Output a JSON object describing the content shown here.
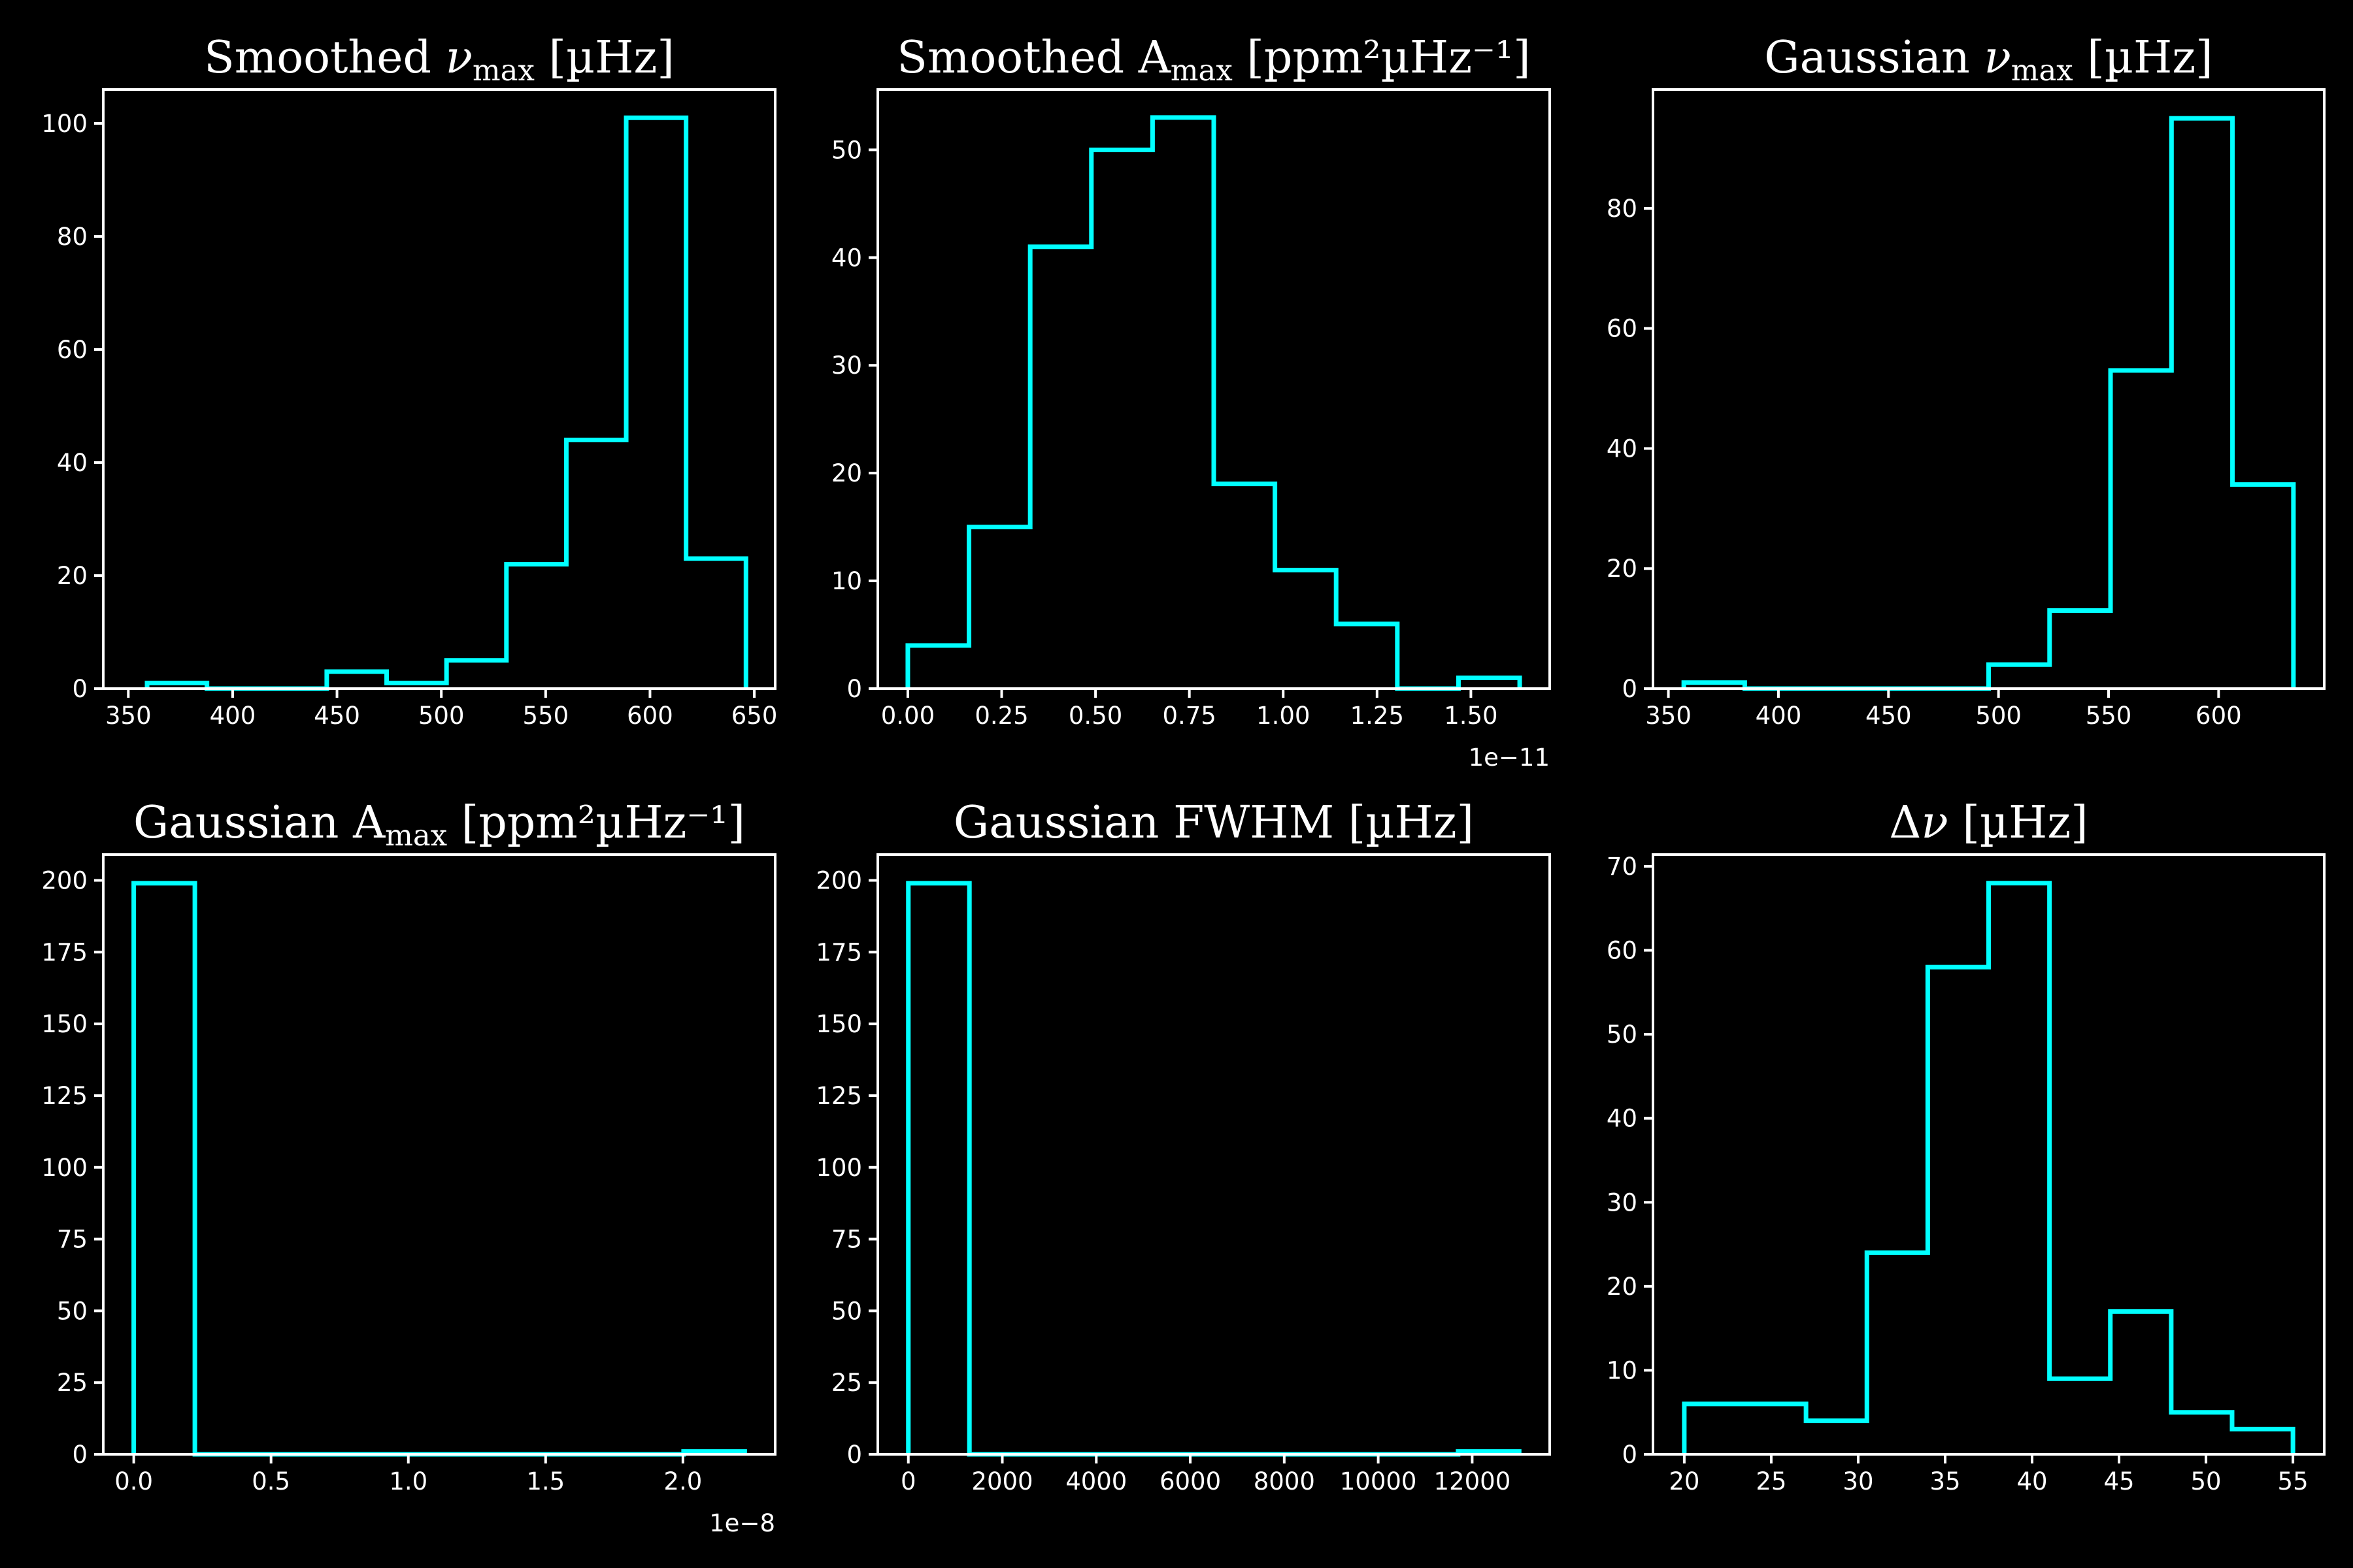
{
  "figure": {
    "background": "#000000",
    "foreground": "#ffffff",
    "line_color": "#00ffff"
  },
  "chart_data": [
    {
      "type": "histogram",
      "title": {
        "main": "Smoothed ",
        "symbol": "ν",
        "sub": "max",
        "sup": "",
        "unit": " [µHz]"
      },
      "bin_edges": [
        359,
        387.7,
        416.4,
        445.1,
        473.8,
        502.5,
        531.2,
        559.9,
        588.6,
        617.3,
        646
      ],
      "counts": [
        1,
        0,
        0,
        3,
        1,
        5,
        22,
        44,
        101,
        23
      ],
      "xlim": [
        338,
        660
      ],
      "ylim": [
        0,
        106
      ],
      "xticks": [
        350,
        400,
        450,
        500,
        550,
        600,
        650
      ],
      "xtick_labels": [
        "350",
        "400",
        "450",
        "500",
        "550",
        "600",
        "650"
      ],
      "yticks": [
        0,
        20,
        40,
        60,
        80,
        100
      ],
      "ytick_labels": [
        "0",
        "20",
        "40",
        "60",
        "80",
        "100"
      ],
      "x_offset_label": ""
    },
    {
      "type": "histogram",
      "title": {
        "main": "Smoothed A",
        "symbol": "",
        "sub": "max",
        "sup": "",
        "unit": " [ppm²µHz⁻¹]"
      },
      "bin_edges": [
        0.0,
        0.163,
        0.326,
        0.489,
        0.652,
        0.815,
        0.978,
        1.141,
        1.304,
        1.467,
        1.63
      ],
      "counts": [
        4,
        15,
        41,
        50,
        53,
        19,
        11,
        6,
        0,
        1
      ],
      "xlim": [
        -0.08,
        1.71
      ],
      "ylim": [
        0,
        55.6
      ],
      "xticks": [
        0.0,
        0.25,
        0.5,
        0.75,
        1.0,
        1.25,
        1.5
      ],
      "xtick_labels": [
        "0.00",
        "0.25",
        "0.50",
        "0.75",
        "1.00",
        "1.25",
        "1.50"
      ],
      "yticks": [
        0,
        10,
        20,
        30,
        40,
        50
      ],
      "ytick_labels": [
        "0",
        "10",
        "20",
        "30",
        "40",
        "50"
      ],
      "x_offset_label": "1e−11"
    },
    {
      "type": "histogram",
      "title": {
        "main": "Gaussian ",
        "symbol": "ν",
        "sub": "max",
        "sup": "",
        "unit": " [µHz]"
      },
      "bin_edges": [
        357,
        384.7,
        412.4,
        440.1,
        467.8,
        495.5,
        523.2,
        550.9,
        578.6,
        606.3,
        634
      ],
      "counts": [
        1,
        0,
        0,
        0,
        0,
        4,
        13,
        53,
        95,
        34
      ],
      "xlim": [
        343,
        648
      ],
      "ylim": [
        0,
        99.8
      ],
      "xticks": [
        350,
        400,
        450,
        500,
        550,
        600
      ],
      "xtick_labels": [
        "350",
        "400",
        "450",
        "500",
        "550",
        "600"
      ],
      "yticks": [
        0,
        20,
        40,
        60,
        80
      ],
      "ytick_labels": [
        "0",
        "20",
        "40",
        "60",
        "80"
      ],
      "x_offset_label": ""
    },
    {
      "type": "histogram",
      "title": {
        "main": "Gaussian A",
        "symbol": "",
        "sub": "max",
        "sup": "",
        "unit": " [ppm²µHz⁻¹]"
      },
      "bin_edges": [
        0.0,
        0.2225,
        0.445,
        0.6675,
        0.89,
        1.1125,
        1.335,
        1.5575,
        1.78,
        2.0025,
        2.225
      ],
      "counts": [
        199,
        0,
        0,
        0,
        0,
        0,
        0,
        0,
        0,
        1
      ],
      "xlim": [
        -0.111,
        2.336
      ],
      "ylim": [
        0,
        209
      ],
      "xticks": [
        0.0,
        0.5,
        1.0,
        1.5,
        2.0
      ],
      "xtick_labels": [
        "0.0",
        "0.5",
        "1.0",
        "1.5",
        "2.0"
      ],
      "yticks": [
        0,
        25,
        50,
        75,
        100,
        125,
        150,
        175,
        200
      ],
      "ytick_labels": [
        "0",
        "25",
        "50",
        "75",
        "100",
        "125",
        "150",
        "175",
        "200"
      ],
      "x_offset_label": "1e−8"
    },
    {
      "type": "histogram",
      "title": {
        "main": "Gaussian FWHM",
        "symbol": "",
        "sub": "",
        "sup": "",
        "unit": " [µHz]"
      },
      "bin_edges": [
        0,
        1300,
        2600,
        3900,
        5200,
        6500,
        7800,
        9100,
        10400,
        11700,
        13000
      ],
      "counts": [
        199,
        0,
        0,
        0,
        0,
        0,
        0,
        0,
        0,
        1
      ],
      "xlim": [
        -650,
        13650
      ],
      "ylim": [
        0,
        209
      ],
      "xticks": [
        0,
        2000,
        4000,
        6000,
        8000,
        10000,
        12000
      ],
      "xtick_labels": [
        "0",
        "2000",
        "4000",
        "6000",
        "8000",
        "10000",
        "12000"
      ],
      "yticks": [
        0,
        25,
        50,
        75,
        100,
        125,
        150,
        175,
        200
      ],
      "ytick_labels": [
        "0",
        "25",
        "50",
        "75",
        "100",
        "125",
        "150",
        "175",
        "200"
      ],
      "x_offset_label": ""
    },
    {
      "type": "histogram",
      "title": {
        "main": "Δ",
        "symbol": "ν",
        "sub": "",
        "sup": "",
        "unit": " [µHz]"
      },
      "bin_edges": [
        20.0,
        23.5,
        27.0,
        30.5,
        34.0,
        37.5,
        41.0,
        44.5,
        48.0,
        51.5,
        55.0
      ],
      "counts": [
        6,
        6,
        4,
        24,
        58,
        68,
        9,
        17,
        5,
        3
      ],
      "xlim": [
        18.2,
        56.8
      ],
      "ylim": [
        0,
        71.4
      ],
      "xticks": [
        20,
        25,
        30,
        35,
        40,
        45,
        50,
        55
      ],
      "xtick_labels": [
        "20",
        "25",
        "30",
        "35",
        "40",
        "45",
        "50",
        "55"
      ],
      "yticks": [
        0,
        10,
        20,
        30,
        40,
        50,
        60,
        70
      ],
      "ytick_labels": [
        "0",
        "10",
        "20",
        "30",
        "40",
        "50",
        "60",
        "70"
      ],
      "x_offset_label": ""
    }
  ]
}
